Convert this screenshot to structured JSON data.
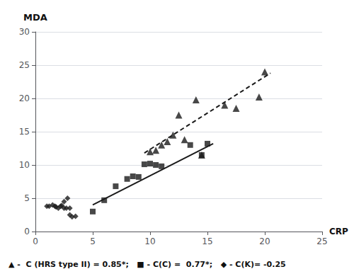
{
  "chart_data": {
    "type": "scatter",
    "xlabel": "CRP",
    "ylabel": "MDA",
    "xlim": [
      0,
      25
    ],
    "ylim": [
      0,
      30
    ],
    "xticks": [
      0,
      5,
      10,
      15,
      20,
      25
    ],
    "yticks": [
      0,
      5,
      10,
      15,
      20,
      25,
      30
    ],
    "grid": "y",
    "legend": "bottom",
    "series": [
      {
        "name": "▲ -  C (HRS type II) = 0.85*;",
        "type": "scatter",
        "marker": "triangle",
        "color": "#1a1a1a",
        "x": [
          10.0,
          10.5,
          11.0,
          11.5,
          12.0,
          12.5,
          13.0,
          14.0,
          14.5,
          16.5,
          17.5,
          19.5,
          20.0
        ],
        "values": [
          12.0,
          12.2,
          13.0,
          13.5,
          14.5,
          17.5,
          13.8,
          19.8,
          11.5,
          19.0,
          18.5,
          20.2,
          24.0
        ]
      },
      {
        "name": "■ - C(C) =  0.77*;",
        "type": "scatter",
        "marker": "square",
        "color": "#1a1a1a",
        "x": [
          5.0,
          6.0,
          7.0,
          8.0,
          8.5,
          9.0,
          9.5,
          10.0,
          10.5,
          11.0,
          13.5,
          14.5,
          15.0
        ],
        "values": [
          3.0,
          4.7,
          6.8,
          7.9,
          8.3,
          8.2,
          10.1,
          10.2,
          10.0,
          9.8,
          13.0,
          11.5,
          13.2
        ]
      },
      {
        "name": "◆ - C(K)= -0.25",
        "type": "scatter",
        "marker": "diamond",
        "color": "#1a1a1a",
        "x": [
          1.0,
          1.2,
          1.5,
          1.7,
          1.8,
          2.0,
          2.2,
          2.3,
          2.5,
          2.5,
          2.7,
          2.8,
          3.0,
          3.0,
          3.2,
          3.5
        ],
        "values": [
          3.8,
          3.8,
          4.0,
          3.8,
          3.7,
          3.5,
          3.8,
          3.9,
          3.5,
          4.5,
          3.5,
          5.0,
          3.5,
          2.5,
          2.2,
          2.3
        ]
      },
      {
        "type": "line",
        "line_style": "solid",
        "color": "#1a1a1a",
        "x": [
          5.0,
          15.5
        ],
        "values": [
          4.0,
          13.2
        ]
      },
      {
        "type": "line",
        "line_style": "dashed",
        "color": "#1a1a1a",
        "x": [
          9.5,
          20.5
        ],
        "values": [
          11.8,
          23.8
        ]
      }
    ]
  }
}
